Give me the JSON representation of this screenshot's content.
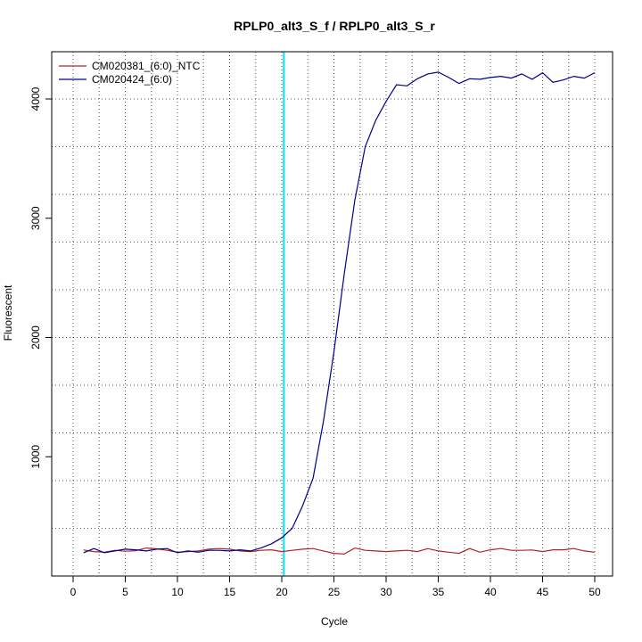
{
  "chart_data": {
    "type": "line",
    "title": "RPLP0_alt3_S_f / RPLP0_alt3_S_r",
    "xlabel": "Cycle",
    "ylabel": "Fluorescent",
    "xlim": [
      0,
      51
    ],
    "ylim": [
      0,
      4500
    ],
    "x_ticks": [
      0,
      5,
      10,
      15,
      20,
      25,
      30,
      35,
      40,
      45,
      50
    ],
    "y_ticks": [
      1000,
      2000,
      3000,
      4000
    ],
    "grid": true,
    "legend_position": "top-left",
    "threshold_cycle": 20.2,
    "threshold_color": "#00e5ee",
    "series": [
      {
        "name": "CM020381_(6:0)_NTC",
        "color": "#b22222",
        "x": [
          1,
          2,
          3,
          4,
          5,
          6,
          7,
          8,
          9,
          10,
          11,
          12,
          13,
          14,
          15,
          16,
          17,
          18,
          19,
          20,
          21,
          22,
          23,
          24,
          25,
          26,
          27,
          28,
          29,
          30,
          31,
          32,
          33,
          34,
          35,
          36,
          37,
          38,
          39,
          40,
          41,
          42,
          43,
          44,
          45,
          46,
          47,
          48,
          49,
          50
        ],
        "values": [
          218,
          205,
          200,
          215,
          208,
          212,
          235,
          228,
          215,
          200,
          205,
          210,
          225,
          230,
          225,
          210,
          205,
          215,
          220,
          205,
          215,
          225,
          230,
          210,
          190,
          185,
          235,
          215,
          210,
          205,
          210,
          215,
          205,
          230,
          210,
          200,
          190,
          230,
          200,
          220,
          230,
          215,
          215,
          218,
          205,
          220,
          220,
          230,
          210,
          200
        ]
      },
      {
        "name": "CM020424_(6:0)",
        "color": "#00008b",
        "x": [
          1,
          2,
          3,
          4,
          5,
          6,
          7,
          8,
          9,
          10,
          11,
          12,
          13,
          14,
          15,
          16,
          17,
          18,
          19,
          20,
          21,
          22,
          23,
          24,
          25,
          26,
          27,
          28,
          29,
          30,
          31,
          32,
          33,
          34,
          35,
          36,
          37,
          38,
          39,
          40,
          41,
          42,
          43,
          44,
          45,
          46,
          47,
          48,
          49,
          50
        ],
        "values": [
          195,
          230,
          195,
          210,
          225,
          220,
          210,
          225,
          230,
          195,
          210,
          200,
          215,
          215,
          210,
          220,
          210,
          235,
          270,
          320,
          400,
          590,
          820,
          1300,
          1880,
          2540,
          3150,
          3600,
          3820,
          3980,
          4120,
          4110,
          4170,
          4210,
          4225,
          4180,
          4130,
          4170,
          4165,
          4180,
          4190,
          4175,
          4210,
          4165,
          4220,
          4140,
          4160,
          4190,
          4175,
          4220
        ]
      }
    ]
  }
}
